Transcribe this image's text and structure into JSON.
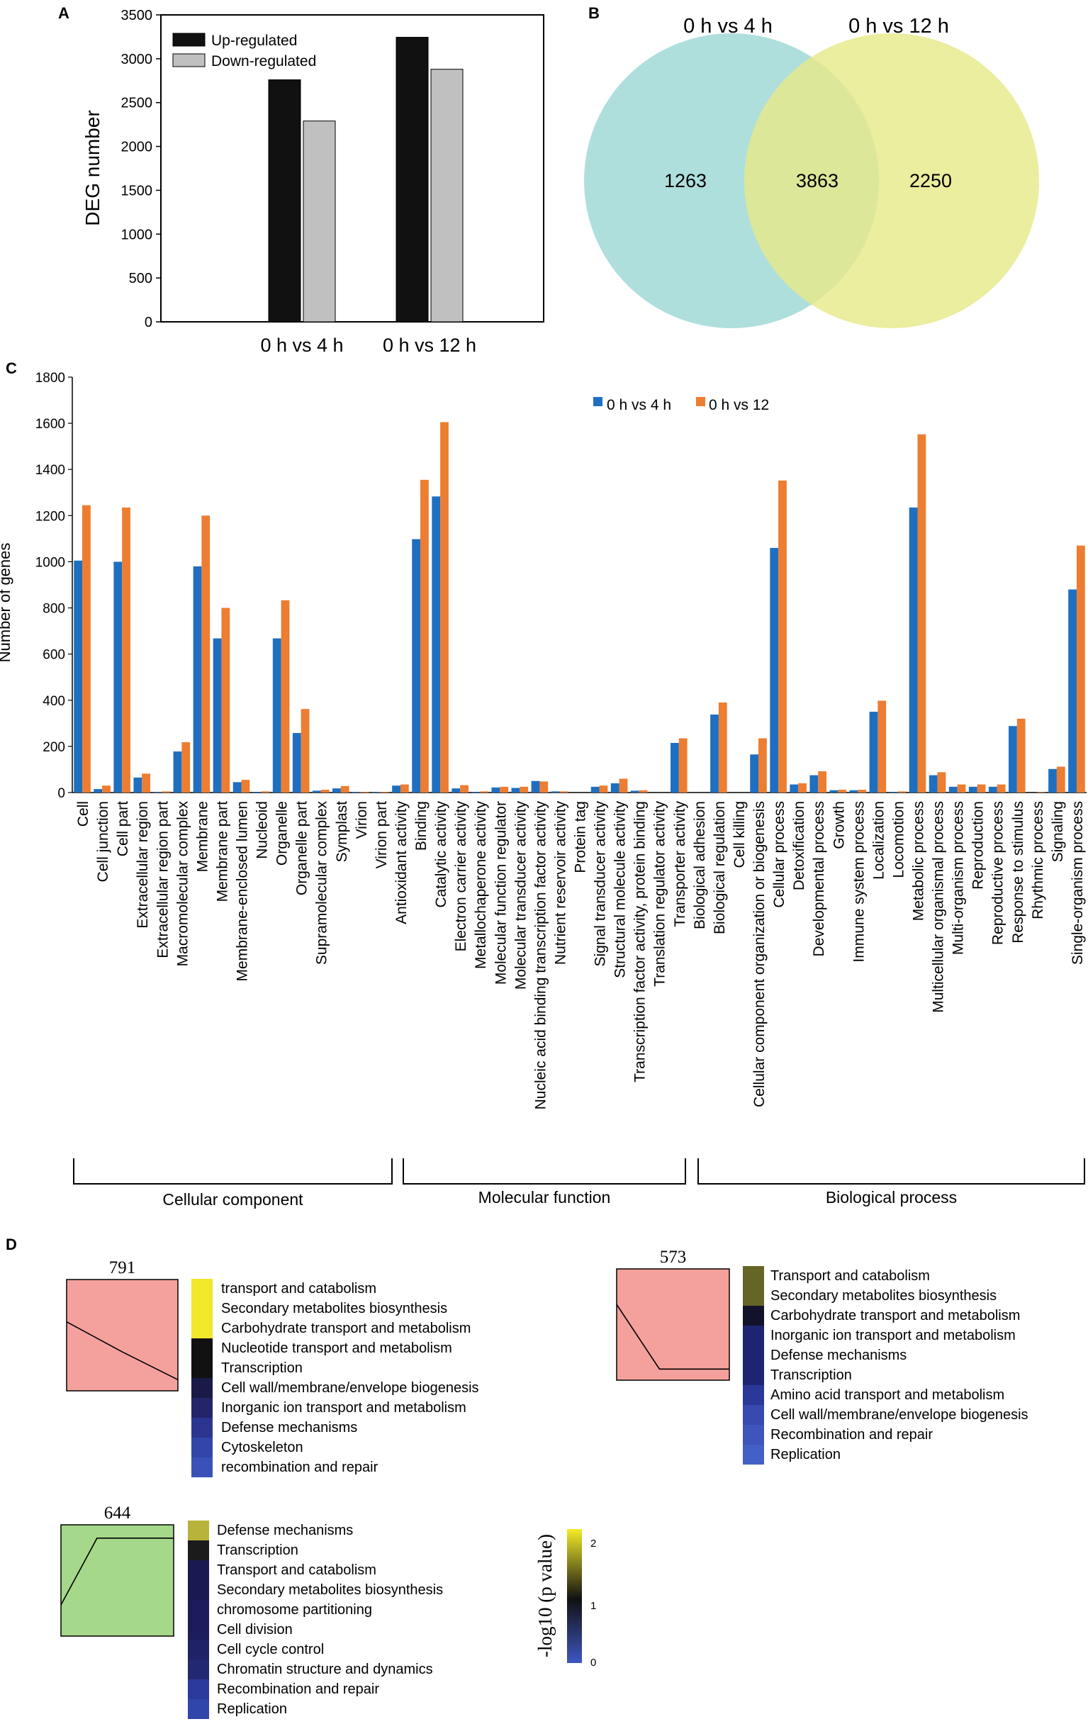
{
  "chart_data": [
    {
      "panel": "A",
      "type": "bar",
      "categories": [
        "0 h vs 4 h",
        "0 h vs 12 h"
      ],
      "series": [
        {
          "name": "Up-regulated",
          "color": "#111111",
          "values": [
            2760,
            3245
          ]
        },
        {
          "name": "Down-regulated",
          "color": "#c0c0c0",
          "values": [
            2290,
            2880
          ]
        }
      ],
      "ylabel": "DEG number",
      "ylim": [
        0,
        3500
      ],
      "yticks": [
        0,
        500,
        1000,
        1500,
        2000,
        2500,
        3000,
        3500
      ]
    },
    {
      "panel": "B",
      "type": "venn",
      "sets": [
        {
          "name": "0 h vs 4 h",
          "color": "#a6dcd8",
          "only": "1263"
        },
        {
          "name": "0 h vs 12 h",
          "color": "#e6e98a",
          "only": "2250"
        }
      ],
      "intersection": "3863"
    },
    {
      "panel": "C",
      "type": "bar",
      "ylabel": "Number of genes",
      "ylim": [
        0,
        1800
      ],
      "yticks": [
        0,
        200,
        400,
        600,
        800,
        1000,
        1200,
        1400,
        1600,
        1800
      ],
      "categories": [
        "Cell",
        "Cell junction",
        "Cell part",
        "Extracellular region",
        "Extracellular region part",
        "Macromolecular complex",
        "Membrane",
        "Membrane part",
        "Membrane-enclosed lumen",
        "Nucleoid",
        "Organelle",
        "Organelle part",
        "Supramolecular complex",
        "Symplast",
        "Virion",
        "Virion part",
        "Antioxidant activity",
        "Binding",
        "Catalytic activity",
        "Electron carrier activity",
        "Metallochaperone activity",
        "Molecular function regulator",
        "Molecular transducer activity",
        "Nucleic acid binding transcription factor activity",
        "Nutrient reservoir activity",
        "Protein tag",
        "Signal transducer activity",
        "Structural molecule activity",
        "Transcription factor activity, protein binding",
        "Translation regulator activity",
        "Transporter activity",
        "Biological adhesion",
        "Biological regulation",
        "Cell killing",
        "Cellular component organization or biogenesis",
        "Cellular process",
        "Detoxification",
        "Developmental process",
        "Growth",
        "Immune system process",
        "Localization",
        "Locomotion",
        "Metabolic process",
        "Multicellular organismal process",
        "Multi-organism process",
        "Reproduction",
        "Reproductive process",
        "Response to stimulus",
        "Rhythmic process",
        "Signaling",
        "Single-organism process"
      ],
      "series": [
        {
          "name": "0 h vs 4 h",
          "color": "#1f6fc1",
          "values": [
            1005,
            15,
            1000,
            65,
            2,
            178,
            980,
            668,
            45,
            3,
            668,
            258,
            8,
            18,
            2,
            2,
            30,
            1098,
            1283,
            18,
            3,
            22,
            20,
            50,
            5,
            0,
            25,
            40,
            8,
            0,
            215,
            0,
            338,
            0,
            165,
            1060,
            35,
            75,
            10,
            10,
            350,
            3,
            1235,
            75,
            25,
            25,
            25,
            288,
            0,
            102,
            880
          ]
        },
        {
          "name": "0 h vs 12",
          "color": "#ed7d31",
          "values": [
            1245,
            30,
            1235,
            82,
            5,
            218,
            1200,
            800,
            55,
            5,
            833,
            362,
            12,
            28,
            3,
            3,
            35,
            1355,
            1605,
            32,
            5,
            25,
            25,
            48,
            5,
            0,
            30,
            60,
            10,
            0,
            235,
            0,
            390,
            0,
            235,
            1352,
            40,
            92,
            12,
            12,
            398,
            5,
            1552,
            88,
            35,
            35,
            35,
            320,
            2,
            112,
            1070
          ]
        }
      ],
      "groups": [
        {
          "label": "Cellular component",
          "from": 0,
          "to": 15
        },
        {
          "label": "Molecular function",
          "from": 16,
          "to": 30
        },
        {
          "label": "Biological process",
          "from": 31,
          "to": 50
        }
      ]
    },
    {
      "panel": "D",
      "type": "heatmap",
      "colorbar": {
        "label": "-log10 (p value)",
        "ticks": [
          "0",
          "1",
          "2"
        ]
      },
      "clusters": [
        {
          "count": "791",
          "color": "#f4a19d",
          "profile": [
            0.62,
            0.35,
            0.1
          ],
          "terms": [
            "transport and catabolism",
            "Secondary metabolites biosynthesis",
            "Carbohydrate transport and metabolism",
            "Nucleotide transport and metabolism",
            "Transcription",
            "Cell wall/membrane/envelope biogenesis",
            "Inorganic ion transport and metabolism",
            "Defense mechanisms",
            "Cytoskeleton",
            "recombination and repair"
          ],
          "term_colors": [
            "#f2e72a",
            "#f2e72a",
            "#f2e72a",
            "#111111",
            "#111111",
            "#1a1a48",
            "#24246a",
            "#2b3590",
            "#3345a8",
            "#3a52b8"
          ]
        },
        {
          "count": "573",
          "color": "#f4a19d",
          "profile": [
            0.68,
            0.1,
            0.1
          ],
          "terms": [
            "Transport and catabolism",
            "Secondary metabolites biosynthesis",
            "Carbohydrate transport and metabolism",
            "Inorganic ion transport and metabolism",
            "Defense mechanisms",
            "Transcription",
            "Amino acid transport and metabolism",
            "Cell wall/membrane/envelope biogenesis",
            "Recombination and repair",
            "Replication"
          ],
          "term_colors": [
            "#656528",
            "#656528",
            "#12122a",
            "#1d2472",
            "#1d2472",
            "#1d2472",
            "#2a3898",
            "#3849b0",
            "#3e55bc",
            "#4360c6"
          ]
        },
        {
          "count": "644",
          "color": "#a6d88b",
          "profile": [
            0.28,
            0.88,
            0.88
          ],
          "terms": [
            "Defense mechanisms",
            "Transcription",
            "Transport and catabolism",
            "Secondary metabolites biosynthesis",
            "chromosome partitioning",
            "Cell division",
            "Cell cycle control",
            "Chromatin structure and dynamics",
            "Recombination and repair",
            "Replication"
          ],
          "term_colors": [
            "#b8b33a",
            "#1b1b1b",
            "#1a1a52",
            "#1a1a52",
            "#1c1c5a",
            "#1c1c5a",
            "#1f2266",
            "#222872",
            "#2b3a9c",
            "#3046aa"
          ]
        }
      ]
    }
  ],
  "panels": {
    "a": "A",
    "b": "B",
    "c": "C",
    "d": "D"
  }
}
